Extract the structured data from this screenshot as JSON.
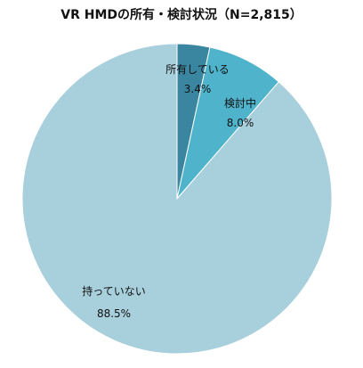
{
  "chart_data": {
    "type": "pie",
    "title": "VR HMDの所有・検討状況（N=2,815）",
    "slices": [
      {
        "label": "所有している",
        "value": 3.4,
        "value_label": "3.4%",
        "color": "#3a86a0"
      },
      {
        "label": "検討中",
        "value": 8.0,
        "value_label": "8.0%",
        "color": "#4fb3cb"
      },
      {
        "label": "持っていない",
        "value": 88.5,
        "value_label": "88.5%",
        "color": "#a8cfdc"
      }
    ],
    "start_angle": "12 o'clock",
    "direction": "clockwise",
    "legend": "none",
    "slice_border_color": "#ffffff"
  }
}
